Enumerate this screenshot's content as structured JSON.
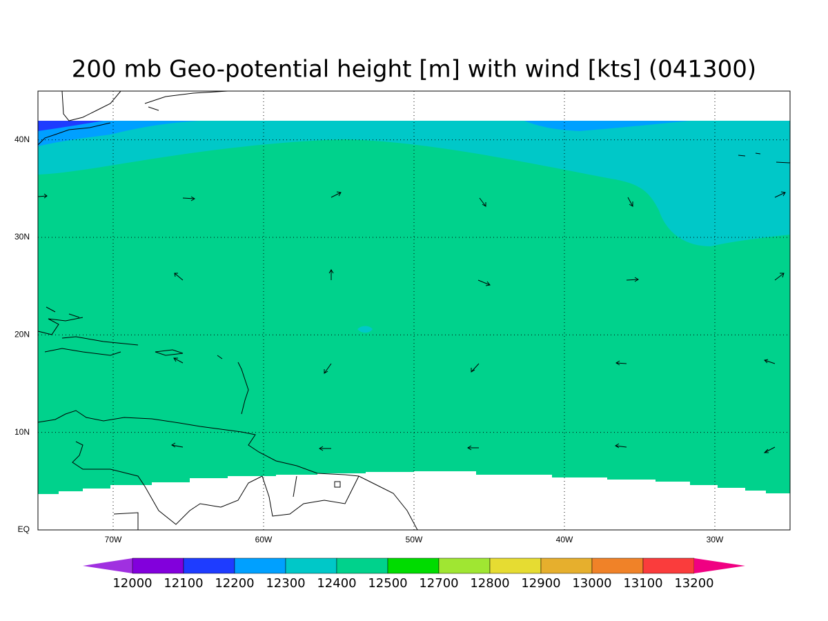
{
  "chart_data": {
    "type": "map",
    "title": "200 mb Geo-potential height [m] with wind [kts] (041300)",
    "xlim": [
      -75,
      -25
    ],
    "ylim": [
      0,
      45
    ],
    "xticks": [
      {
        "value": -70,
        "label": "70W"
      },
      {
        "value": -60,
        "label": "60W"
      },
      {
        "value": -50,
        "label": "50W"
      },
      {
        "value": -40,
        "label": "40W"
      },
      {
        "value": -30,
        "label": "30W"
      }
    ],
    "yticks": [
      {
        "value": 0,
        "label": "EQ"
      },
      {
        "value": 10,
        "label": "10N"
      },
      {
        "value": 20,
        "label": "20N"
      },
      {
        "value": 30,
        "label": "30N"
      },
      {
        "value": 40,
        "label": "40N"
      }
    ],
    "grid": true,
    "colorbar": {
      "levels": [
        12000,
        12100,
        12200,
        12300,
        12400,
        12500,
        12700,
        12800,
        12900,
        13000,
        13100,
        13200
      ],
      "colors": [
        "#a030e0",
        "#8200dc",
        "#1e3cff",
        "#00a0ff",
        "#00c8c8",
        "#00d28c",
        "#00dc00",
        "#a0e632",
        "#e6dc32",
        "#e6af2d",
        "#f08228",
        "#fa3c3c",
        "#f00082"
      ]
    }
  }
}
